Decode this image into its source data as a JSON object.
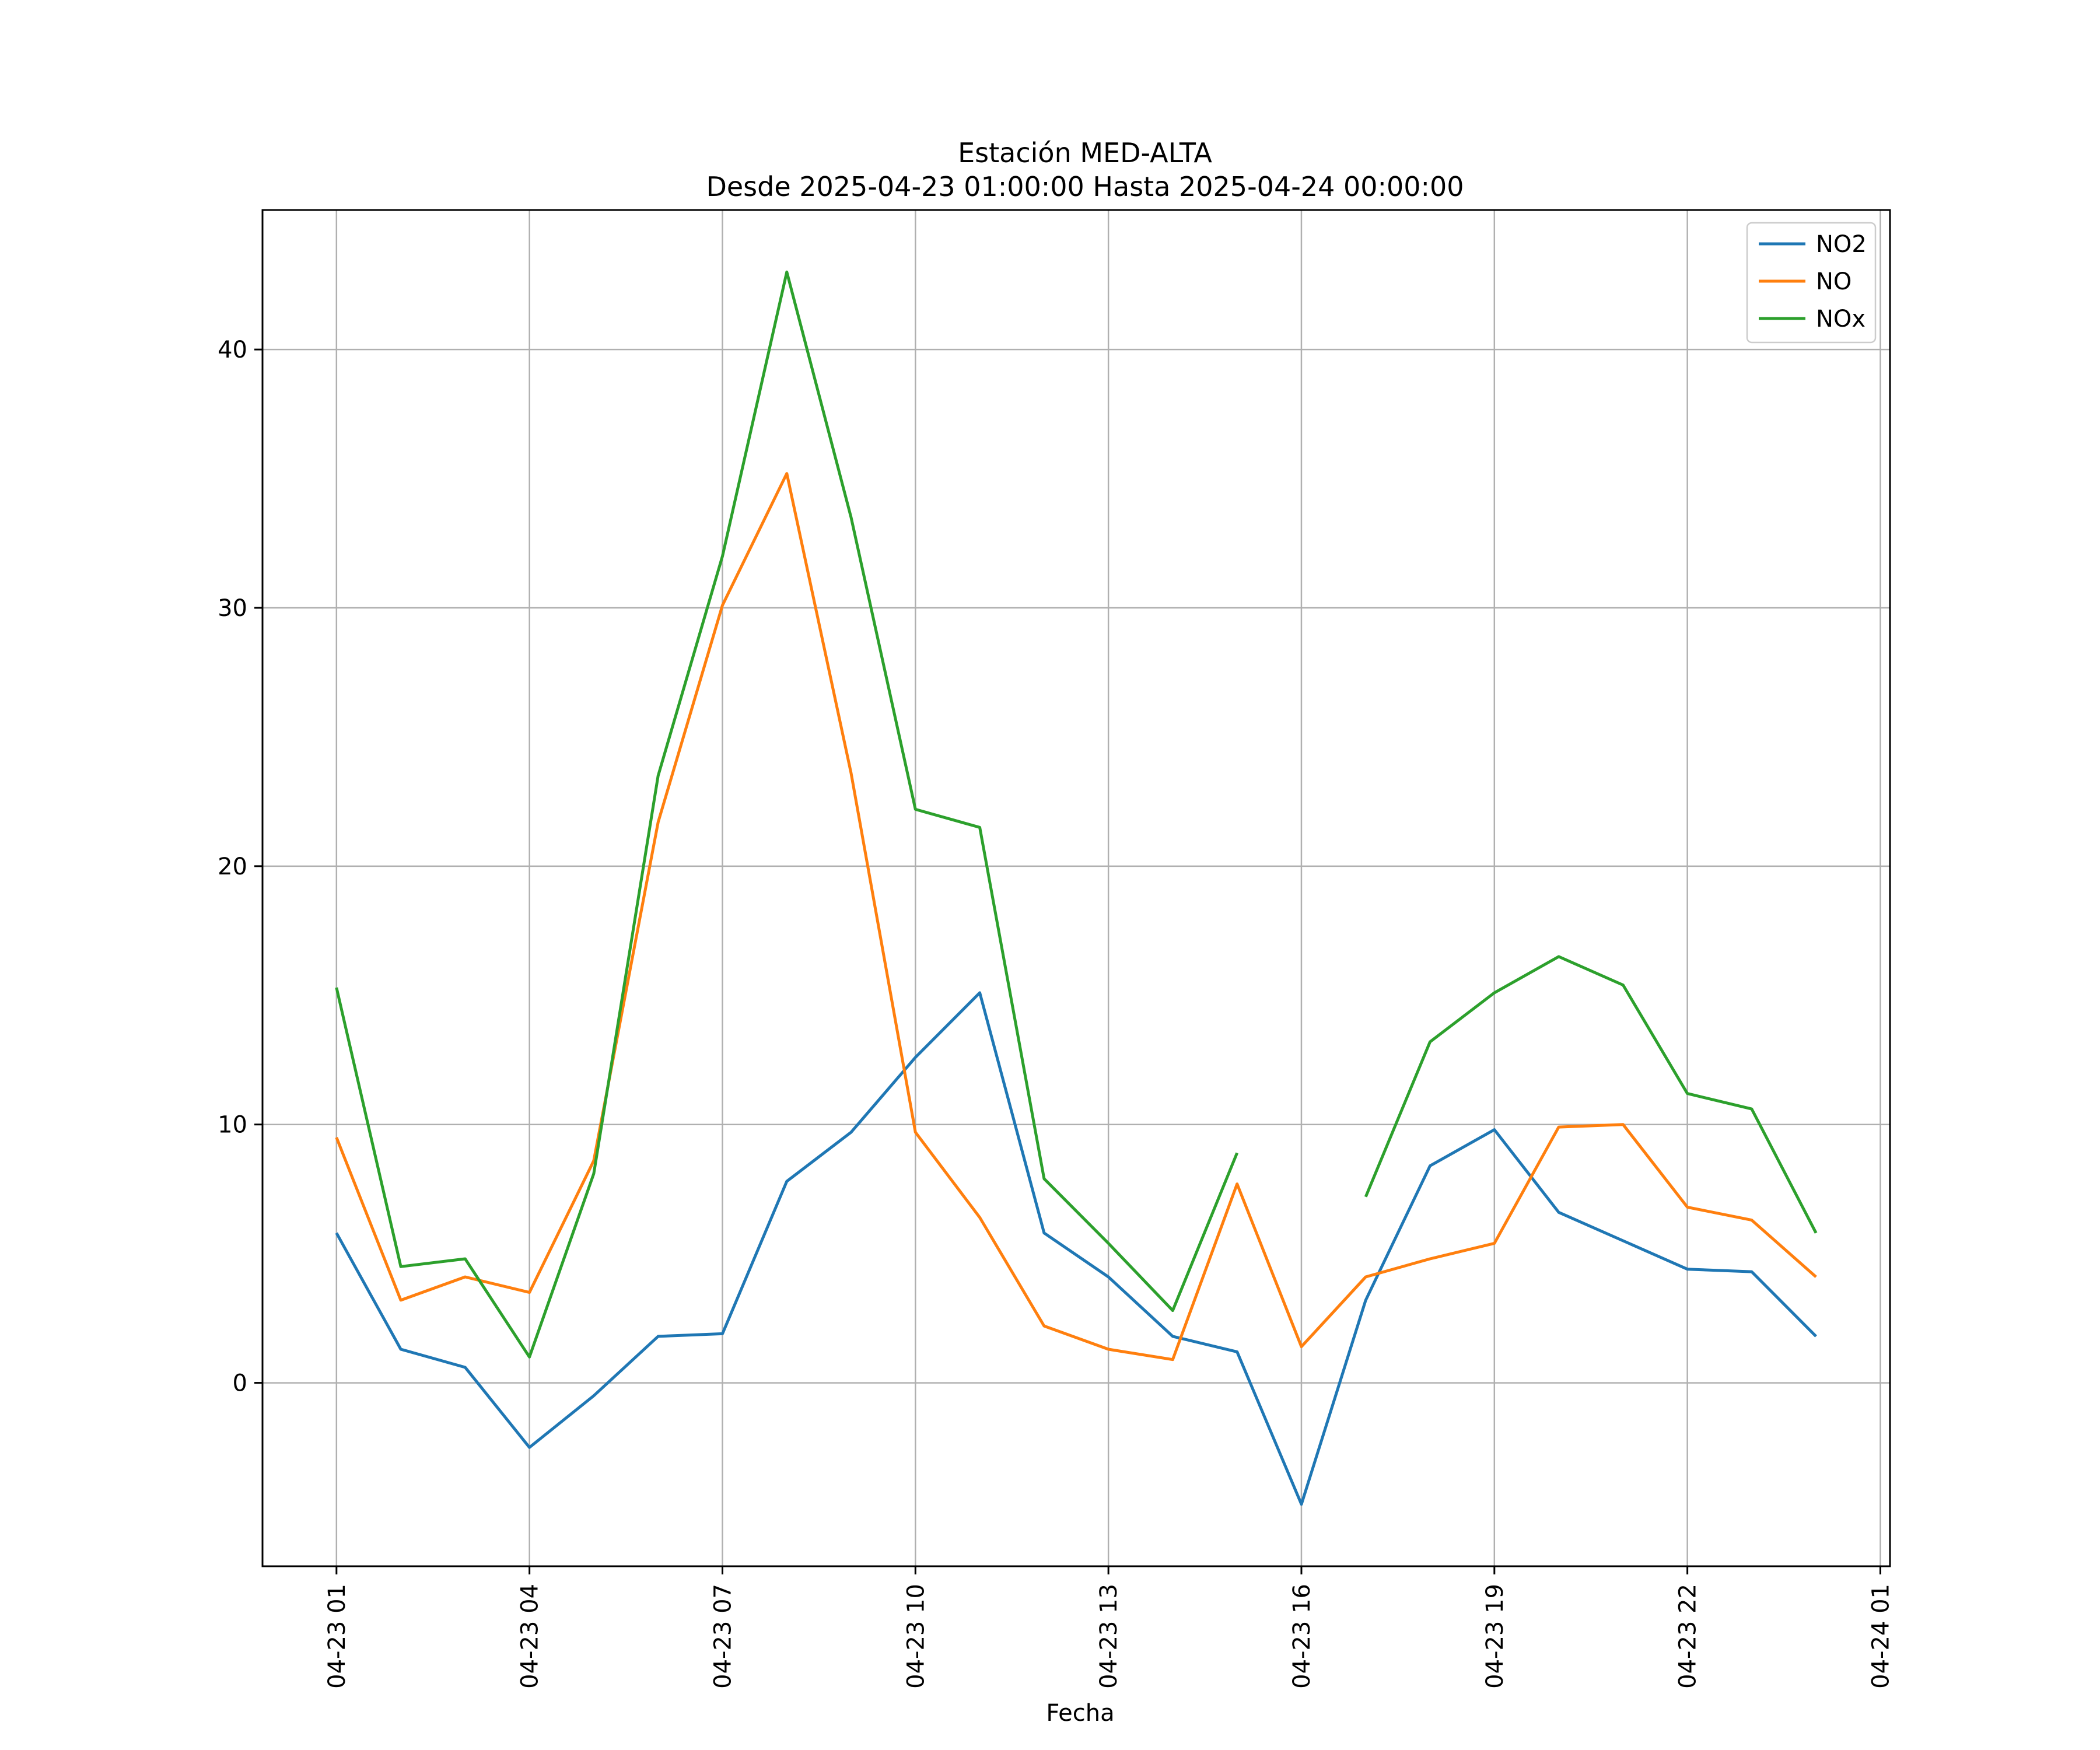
{
  "chart_data": {
    "type": "line",
    "title": "Estación MED-ALTA",
    "subtitle": "Desde 2025-04-23 01:00:00 Hasta 2025-04-24 00:00:00",
    "xlabel": "Fecha",
    "ylabel": "",
    "x_hours": [
      1,
      2,
      3,
      4,
      5,
      6,
      7,
      8,
      9,
      10,
      11,
      12,
      13,
      14,
      15,
      16,
      17,
      18,
      19,
      20,
      21,
      22,
      23,
      24
    ],
    "xlim_hours": [
      -0.15,
      25.15
    ],
    "ylim": [
      -7.1,
      45.4
    ],
    "x_ticks": [
      {
        "hour": 1,
        "label": "04-23 01"
      },
      {
        "hour": 4,
        "label": "04-23 04"
      },
      {
        "hour": 7,
        "label": "04-23 07"
      },
      {
        "hour": 10,
        "label": "04-23 10"
      },
      {
        "hour": 13,
        "label": "04-23 13"
      },
      {
        "hour": 16,
        "label": "04-23 16"
      },
      {
        "hour": 19,
        "label": "04-23 19"
      },
      {
        "hour": 22,
        "label": "04-23 22"
      },
      {
        "hour": 25,
        "label": "04-24 01"
      }
    ],
    "y_ticks": [
      {
        "value": 0,
        "label": "0"
      },
      {
        "value": 10,
        "label": "10"
      },
      {
        "value": 20,
        "label": "20"
      },
      {
        "value": 30,
        "label": "30"
      },
      {
        "value": 40,
        "label": "40"
      }
    ],
    "grid": true,
    "legend_position": "top-right",
    "series": [
      {
        "name": "NO2",
        "color": "#1f77b4",
        "values": [
          5.8,
          1.3,
          0.6,
          -2.5,
          -0.5,
          1.8,
          1.9,
          7.8,
          9.7,
          12.6,
          15.1,
          5.8,
          4.1,
          1.8,
          1.2,
          -4.7,
          3.2,
          8.4,
          9.8,
          6.6,
          5.5,
          4.4,
          4.3,
          1.8
        ]
      },
      {
        "name": "NO",
        "color": "#ff7f0e",
        "values": [
          9.5,
          3.2,
          4.1,
          3.5,
          8.6,
          21.7,
          30.1,
          35.2,
          23.6,
          9.7,
          6.4,
          2.2,
          1.3,
          0.9,
          7.7,
          1.4,
          4.1,
          4.8,
          5.4,
          9.9,
          10.0,
          6.8,
          6.3,
          4.1
        ]
      },
      {
        "name": "NOx",
        "color": "#2ca02c",
        "values": [
          15.3,
          4.5,
          4.8,
          1.0,
          8.1,
          23.5,
          32.0,
          43.0,
          33.5,
          22.2,
          21.5,
          7.9,
          5.4,
          2.8,
          8.9,
          null,
          7.2,
          13.2,
          15.1,
          16.5,
          15.4,
          11.2,
          10.6,
          5.8
        ]
      }
    ]
  }
}
